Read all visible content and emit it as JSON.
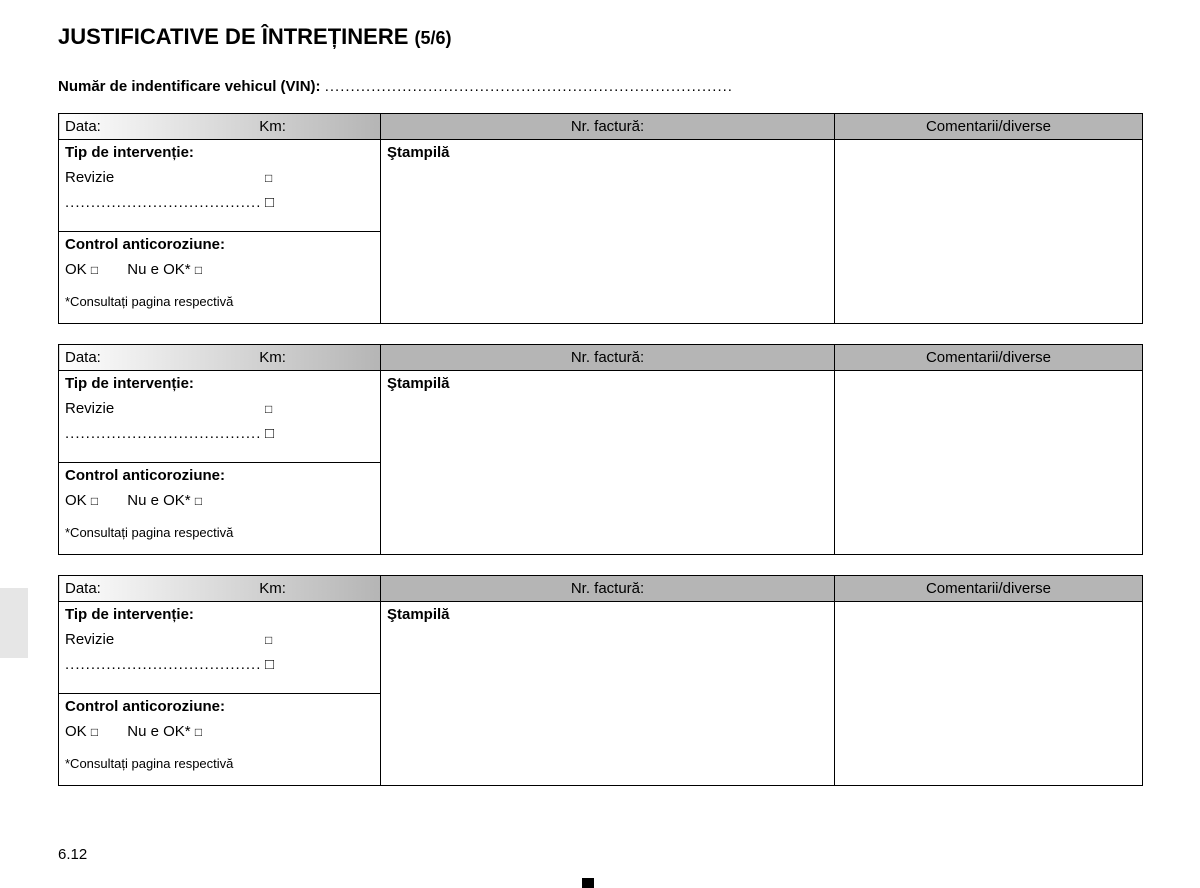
{
  "title_main": "JUSTIFICATIVE DE ÎNTREȚINERE ",
  "title_sub": "(5/6)",
  "vin_label": "Număr de indentificare vehicul (VIN): ",
  "vin_dots": "...............................................................................",
  "headers": {
    "data": "Data:",
    "km": "Km:",
    "factura": "Nr. factură:",
    "comentarii": "Comentarii/diverse"
  },
  "block": {
    "tip_label": "Tip de intervenție:",
    "revizie": "Revizie",
    "box": "□",
    "dots_row": "......................................",
    "control_label": "Control anticoroziune:",
    "ok": "OK ",
    "nu_ok": "Nu e OK* ",
    "footnote": "*Consultați pagina respectivă",
    "stampila": "Ştampilă"
  },
  "page_number": "6.12",
  "spaces": {
    "hdr_left_gap": "                                      ",
    "ok_gap": "       "
  },
  "colors": {
    "border": "#000000",
    "text": "#000000",
    "bg": "#ffffff",
    "grad_start": "#ffffff",
    "grad_end": "#b5b5b5",
    "hdr_fill": "#b5b5b5",
    "tab": "#e6e6e6"
  }
}
